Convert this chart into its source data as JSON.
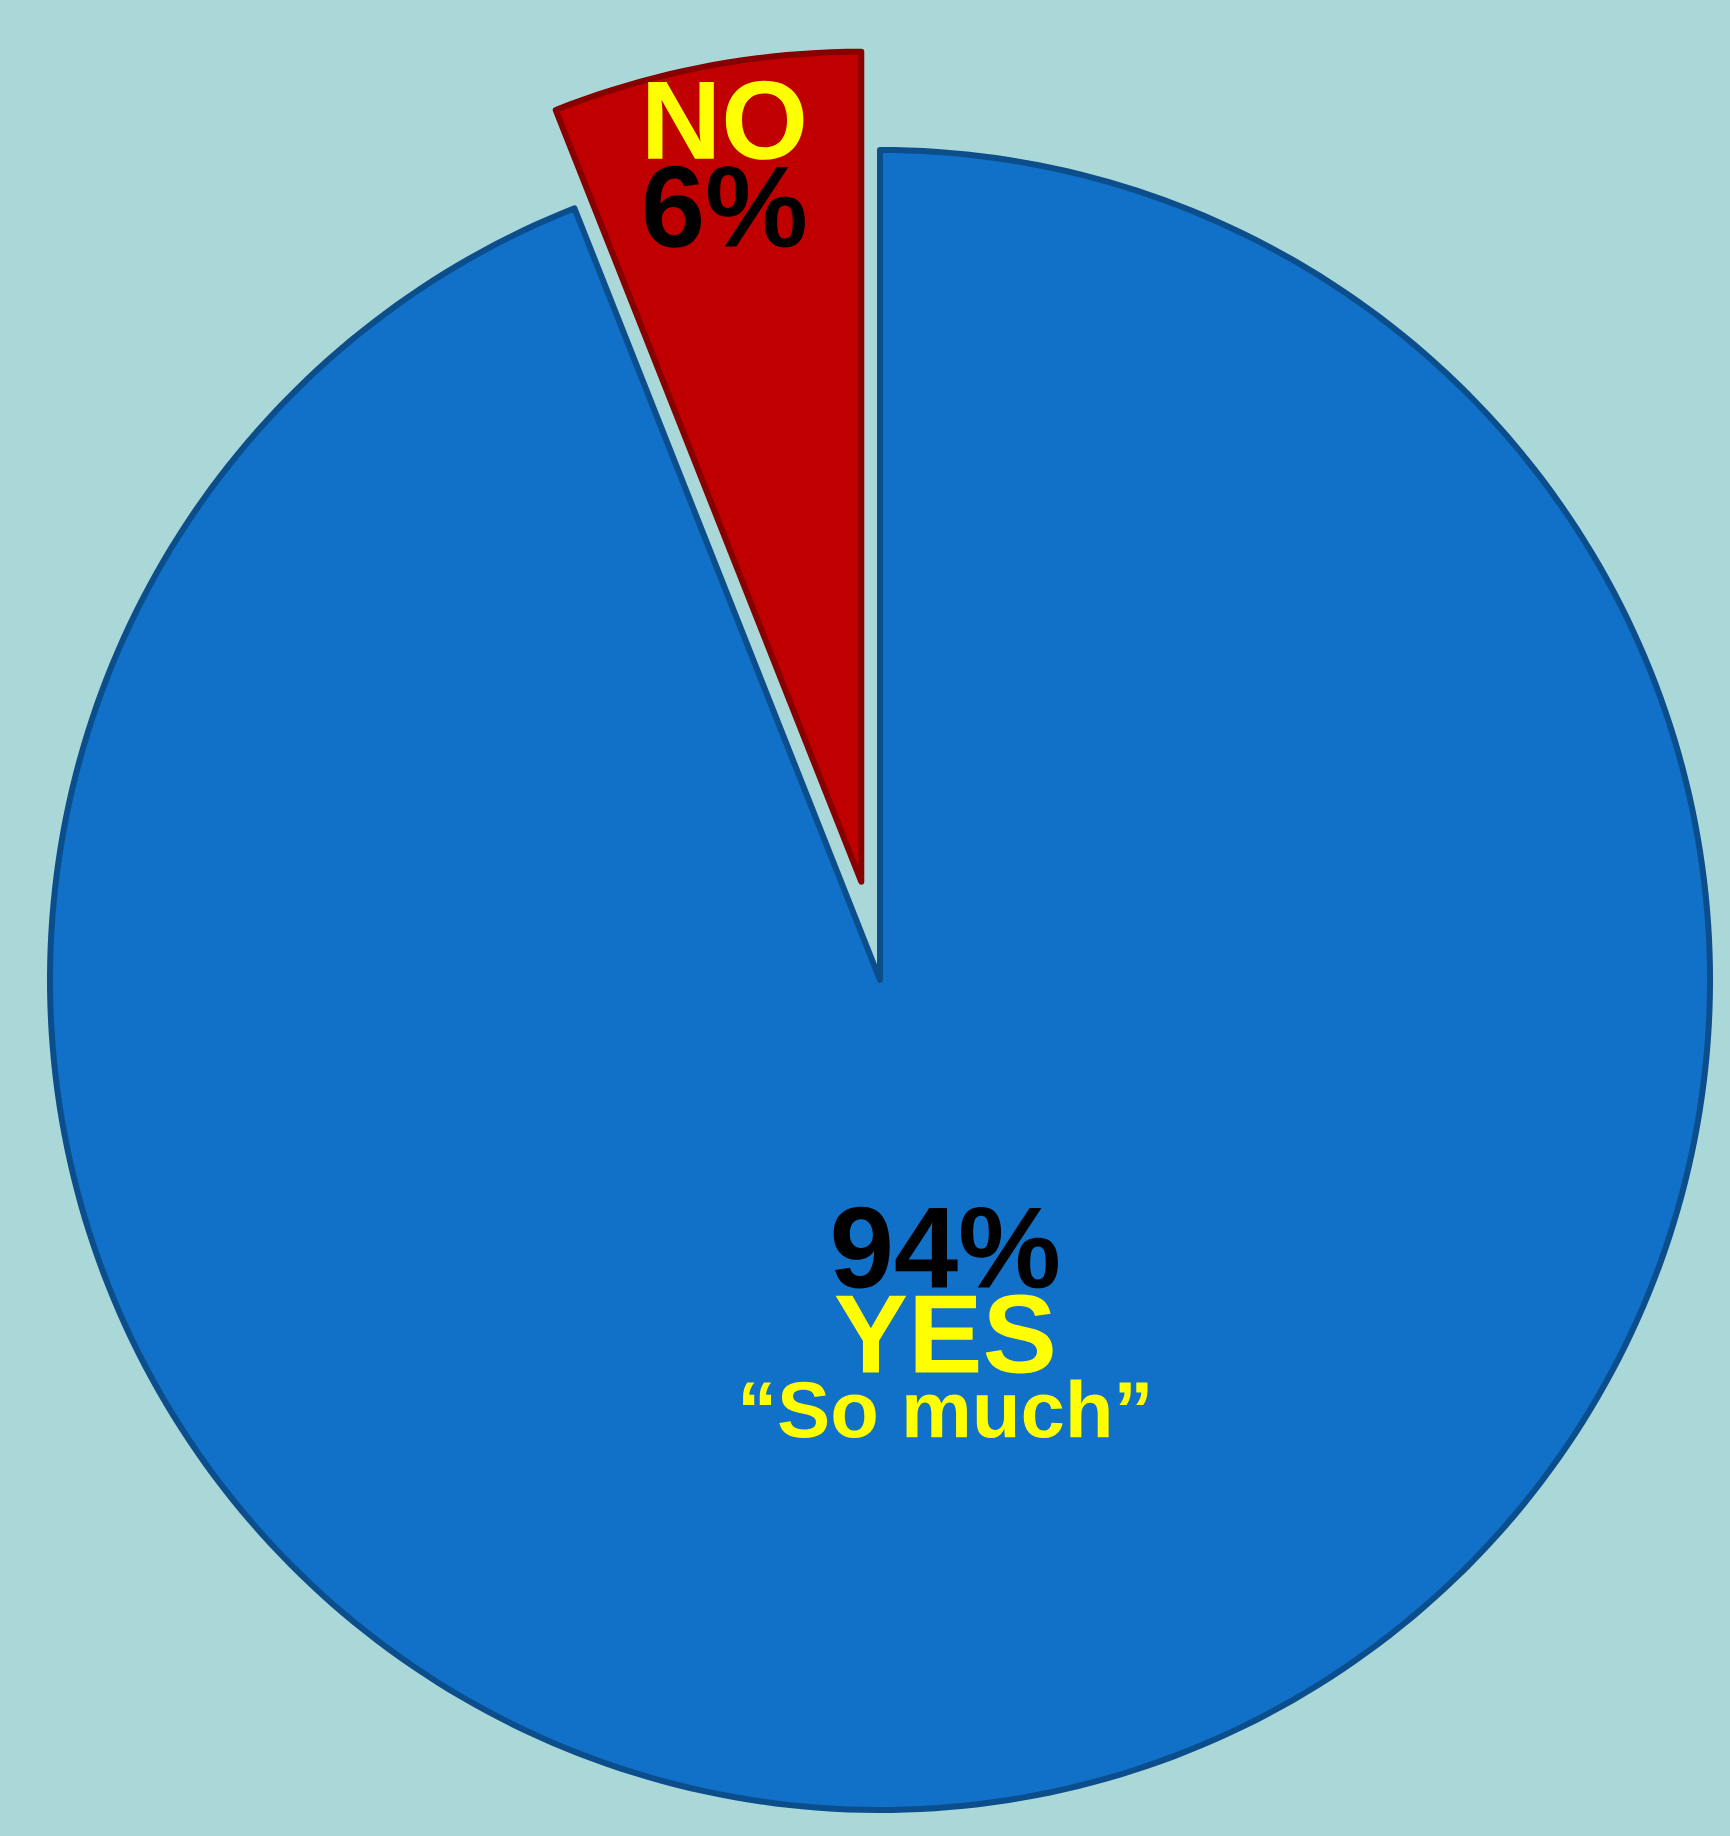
{
  "chart_data": {
    "type": "pie",
    "categories": [
      "YES",
      "NO"
    ],
    "values": [
      94,
      6
    ],
    "colors": [
      "#1170c8",
      "#c00000"
    ],
    "value_labels": [
      "94%",
      "6%"
    ],
    "annotations": [
      "“So much”"
    ]
  }
}
